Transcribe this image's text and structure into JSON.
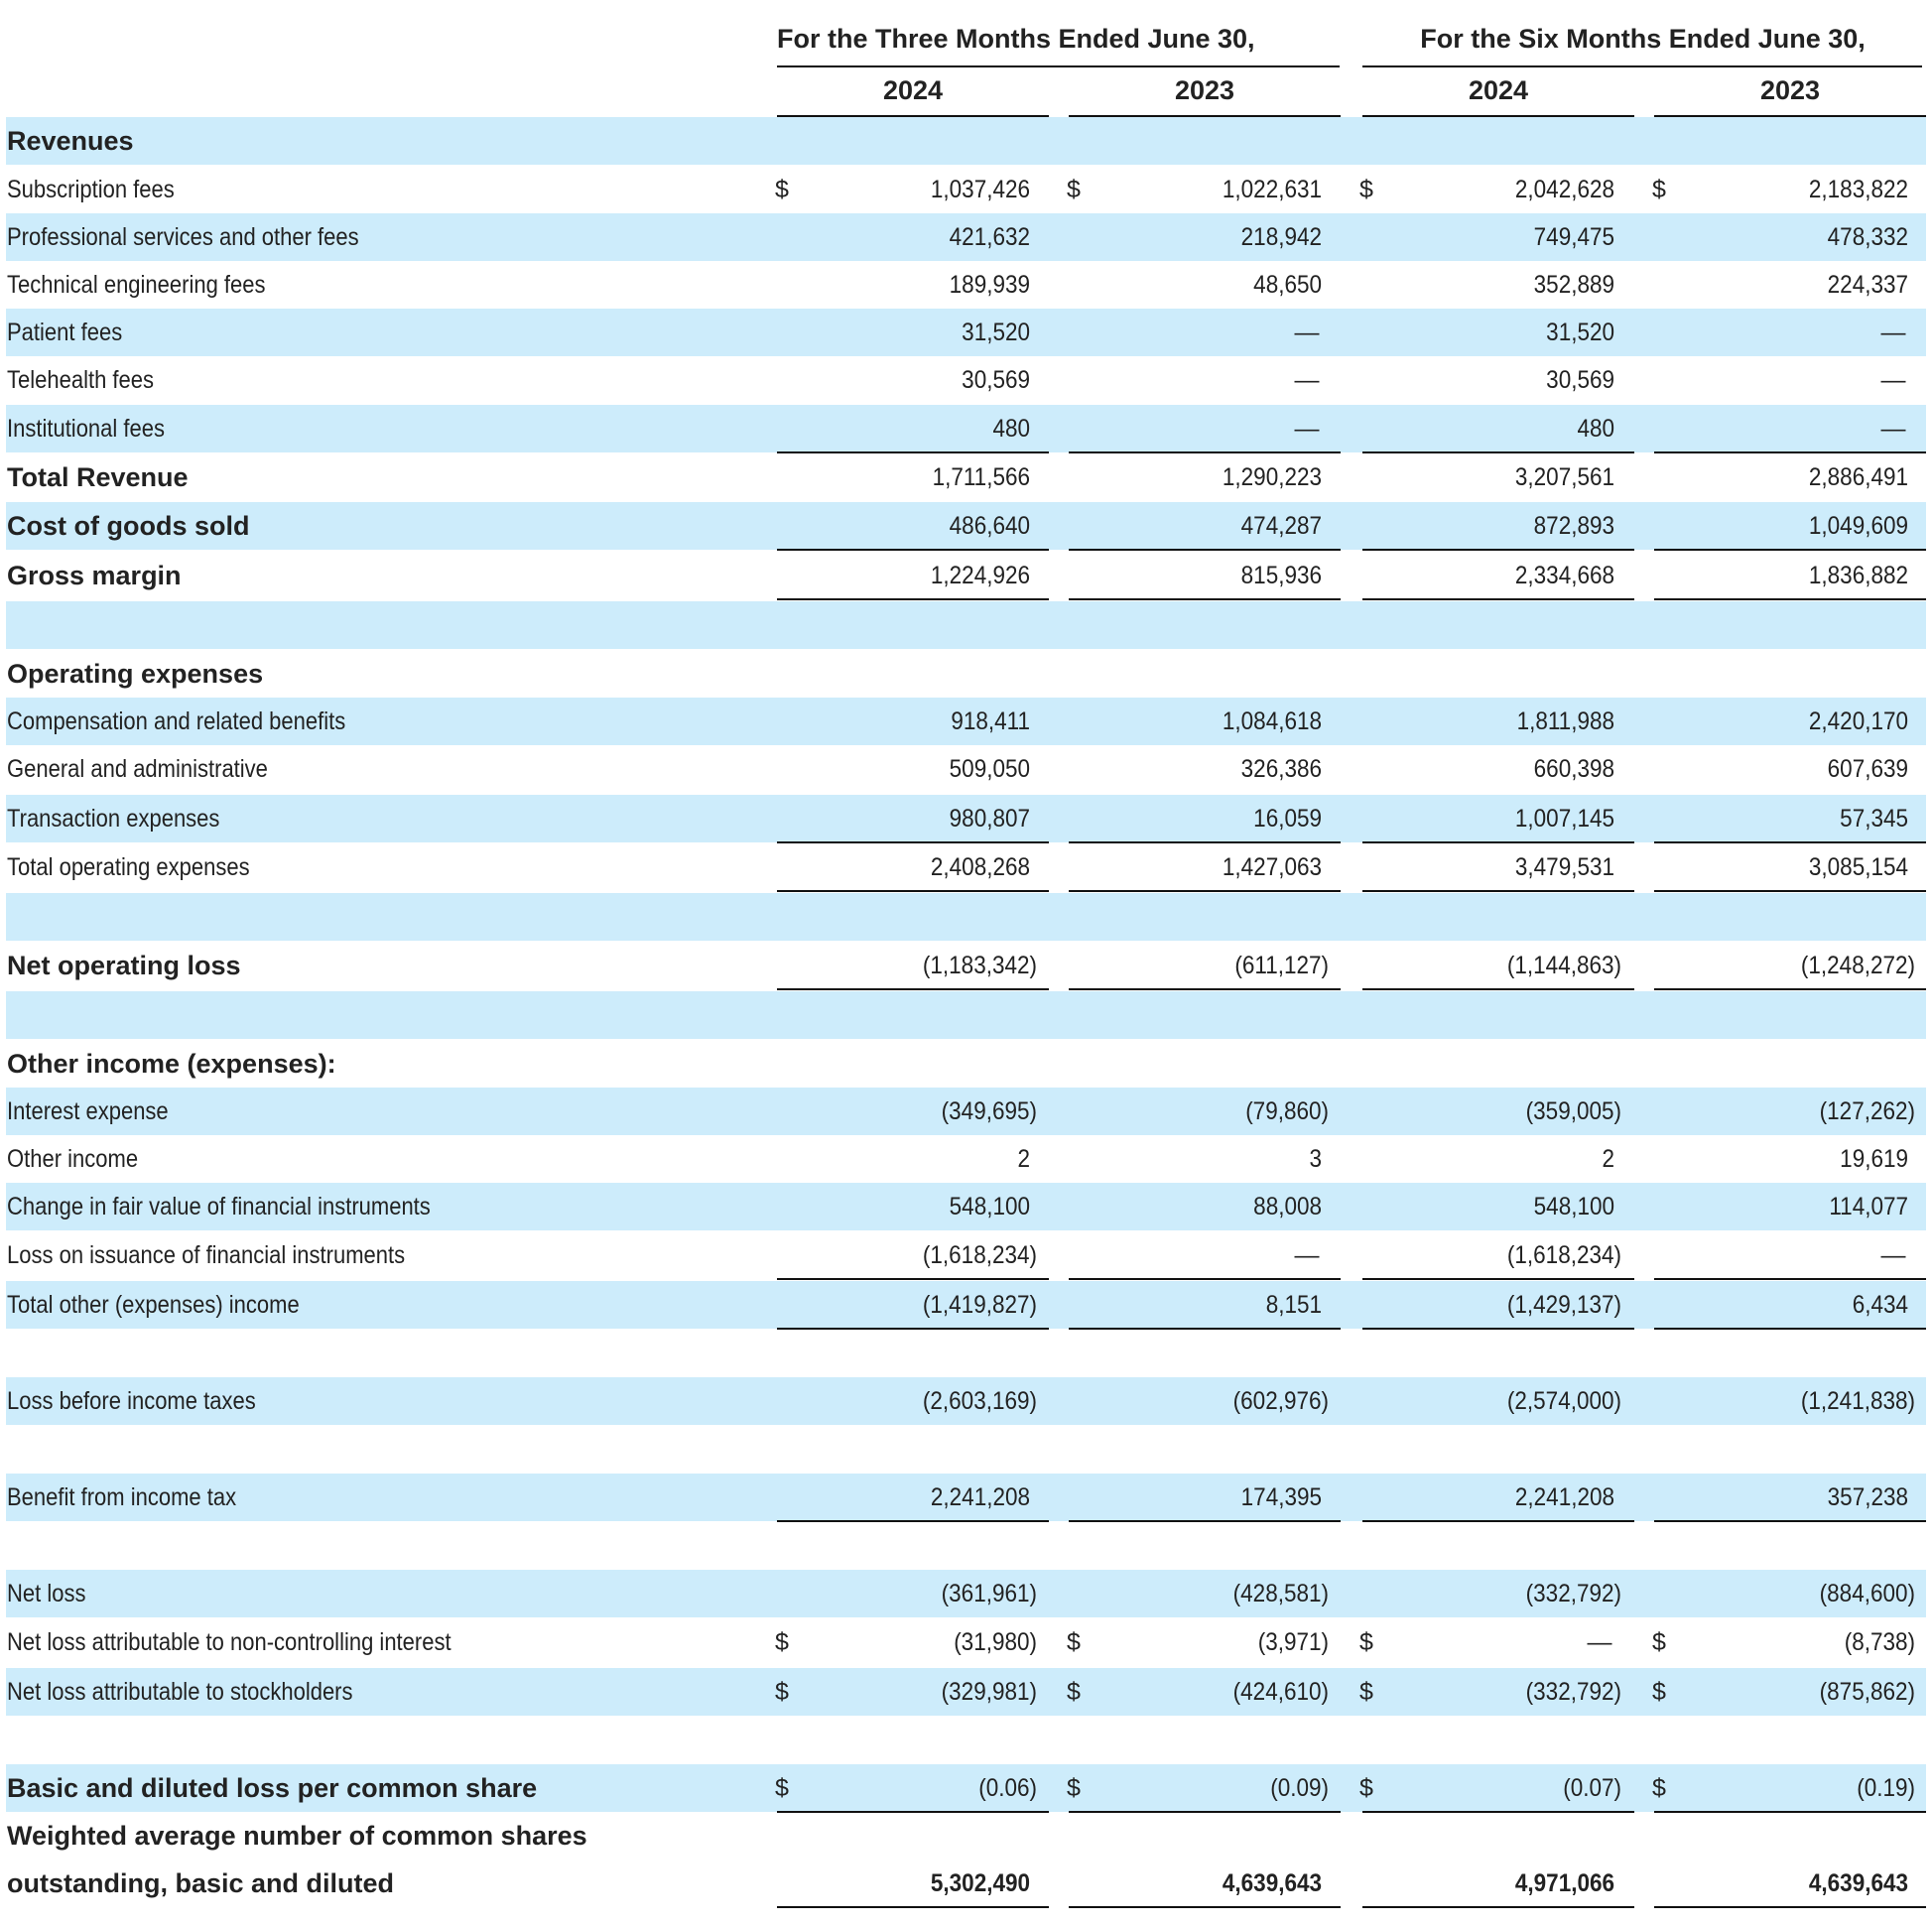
{
  "header": {
    "three_months": "For the Three Months Ended June 30,",
    "six_months": "For the Six Months Ended June 30,",
    "years": [
      "2024",
      "2023",
      "2024",
      "2023"
    ]
  },
  "currency_symbol": "$",
  "rows": [
    {
      "label": "Revenues",
      "bold": true,
      "shade": true,
      "values": [
        "",
        "",
        "",
        ""
      ]
    },
    {
      "label": "Subscription fees",
      "shade": false,
      "dollar": [
        true,
        true,
        true,
        true
      ],
      "values": [
        "1,037,426",
        "1,022,631",
        "2,042,628",
        "2,183,822"
      ]
    },
    {
      "label": "Professional services and other fees",
      "shade": true,
      "values": [
        "421,632",
        "218,942",
        "749,475",
        "478,332"
      ]
    },
    {
      "label": "Technical engineering fees",
      "shade": false,
      "values": [
        "189,939",
        "48,650",
        "352,889",
        "224,337"
      ]
    },
    {
      "label": "Patient fees",
      "shade": true,
      "values": [
        "31,520",
        "—",
        "31,520",
        "—"
      ]
    },
    {
      "label": "Telehealth fees",
      "shade": false,
      "values": [
        "30,569",
        "—",
        "30,569",
        "—"
      ]
    },
    {
      "label": "Institutional fees",
      "shade": true,
      "values": [
        "480",
        "—",
        "480",
        "—"
      ],
      "rule_below": true
    },
    {
      "label": "Total Revenue",
      "bold": true,
      "shade": false,
      "values": [
        "1,711,566",
        "1,290,223",
        "3,207,561",
        "2,886,491"
      ]
    },
    {
      "label": "Cost of goods sold",
      "bold": true,
      "shade": true,
      "values": [
        "486,640",
        "474,287",
        "872,893",
        "1,049,609"
      ],
      "rule_below": true
    },
    {
      "label": "Gross margin",
      "bold": true,
      "shade": false,
      "values": [
        "1,224,926",
        "815,936",
        "2,334,668",
        "1,836,882"
      ],
      "rule_below": true
    },
    {
      "label": "",
      "shade": true,
      "values": [
        "",
        "",
        "",
        ""
      ]
    },
    {
      "label": "Operating expenses",
      "bold": true,
      "shade": false,
      "values": [
        "",
        "",
        "",
        ""
      ]
    },
    {
      "label": "Compensation and related benefits",
      "shade": true,
      "values": [
        "918,411",
        "1,084,618",
        "1,811,988",
        "2,420,170"
      ]
    },
    {
      "label": "General and administrative",
      "shade": false,
      "values": [
        "509,050",
        "326,386",
        "660,398",
        "607,639"
      ]
    },
    {
      "label": "Transaction expenses",
      "shade": true,
      "values": [
        "980,807",
        "16,059",
        "1,007,145",
        "57,345"
      ],
      "rule_below": true
    },
    {
      "label": "Total operating expenses",
      "shade": false,
      "values": [
        "2,408,268",
        "1,427,063",
        "3,479,531",
        "3,085,154"
      ],
      "rule_below": true
    },
    {
      "label": "",
      "shade": true,
      "values": [
        "",
        "",
        "",
        ""
      ]
    },
    {
      "label": "Net operating loss",
      "bold": true,
      "shade": false,
      "values": [
        "(1,183,342)",
        "(611,127)",
        "(1,144,863)",
        "(1,248,272)"
      ],
      "rule_below": true
    },
    {
      "label": "",
      "shade": true,
      "values": [
        "",
        "",
        "",
        ""
      ]
    },
    {
      "label": "Other income (expenses):",
      "bold": true,
      "shade": false,
      "values": [
        "",
        "",
        "",
        ""
      ]
    },
    {
      "label": "Interest expense",
      "shade": true,
      "values": [
        "(349,695)",
        "(79,860)",
        "(359,005)",
        "(127,262)"
      ]
    },
    {
      "label": "Other income",
      "shade": false,
      "values": [
        "2",
        "3",
        "2",
        "19,619"
      ]
    },
    {
      "label": "Change in fair value of financial instruments",
      "shade": true,
      "values": [
        "548,100",
        "88,008",
        "548,100",
        "114,077"
      ]
    },
    {
      "label": "Loss on issuance of financial instruments",
      "shade": false,
      "values": [
        "(1,618,234)",
        "—",
        "(1,618,234)",
        "—"
      ],
      "rule_below": true
    },
    {
      "label": "Total other (expenses) income",
      "shade": true,
      "values": [
        "(1,419,827)",
        "8,151",
        "(1,429,137)",
        "6,434"
      ],
      "rule_below": true
    },
    {
      "label": "",
      "shade": false,
      "values": [
        "",
        "",
        "",
        ""
      ]
    },
    {
      "label": "Loss before income taxes",
      "shade": true,
      "values": [
        "(2,603,169)",
        "(602,976)",
        "(2,574,000)",
        "(1,241,838)"
      ]
    },
    {
      "label": "",
      "shade": false,
      "values": [
        "",
        "",
        "",
        ""
      ]
    },
    {
      "label": "Benefit from income tax",
      "shade": true,
      "values": [
        "2,241,208",
        "174,395",
        "2,241,208",
        "357,238"
      ],
      "rule_below": true
    },
    {
      "label": "",
      "shade": false,
      "values": [
        "",
        "",
        "",
        ""
      ]
    },
    {
      "label": "Net loss",
      "shade": true,
      "values": [
        "(361,961)",
        "(428,581)",
        "(332,792)",
        "(884,600)"
      ]
    },
    {
      "label": "Net loss attributable to non-controlling interest",
      "shade": false,
      "dollar": [
        true,
        true,
        true,
        true
      ],
      "values": [
        "(31,980)",
        "(3,971)",
        "—",
        "(8,738)"
      ]
    },
    {
      "label": "Net loss attributable to stockholders",
      "shade": true,
      "dollar": [
        true,
        true,
        true,
        true
      ],
      "values": [
        "(329,981)",
        "(424,610)",
        "(332,792)",
        "(875,862)"
      ]
    },
    {
      "label": "",
      "shade": false,
      "values": [
        "",
        "",
        "",
        ""
      ]
    },
    {
      "label": "Basic and diluted loss per common share",
      "bold": true,
      "shade": true,
      "dollar": [
        true,
        true,
        true,
        true
      ],
      "values": [
        "(0.06)",
        "(0.09)",
        "(0.07)",
        "(0.19)"
      ],
      "rule_below": true
    },
    {
      "label": "Weighted average number of common shares",
      "bold": true,
      "shade": false,
      "values": [
        "",
        "",
        "",
        ""
      ]
    },
    {
      "label": "outstanding, basic and diluted",
      "bold": true,
      "bold_values": true,
      "shade": false,
      "values": [
        "5,302,490",
        "4,639,643",
        "4,971,066",
        "4,639,643"
      ],
      "rule_below": true
    }
  ]
}
